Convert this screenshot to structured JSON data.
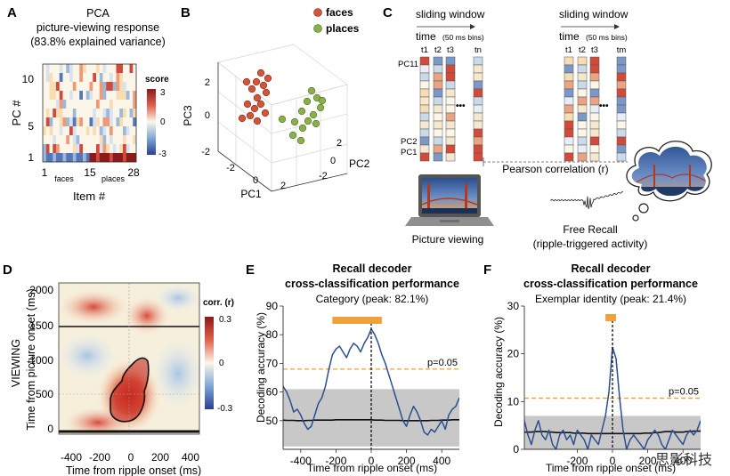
{
  "panels": {
    "A": {
      "letter": "A",
      "title_lines": [
        "PCA",
        "picture-viewing response",
        "(83.8% explained variance)"
      ],
      "ylabel": "PC #",
      "xlabel": "Item #",
      "yticks": [
        "10",
        "5",
        "1"
      ],
      "xticks": [
        "1",
        "15",
        "28"
      ],
      "xgroups": [
        "faces",
        "places"
      ],
      "colorbar_label": "score",
      "colorbar_ticks": [
        "3",
        "0",
        "-3"
      ]
    },
    "B": {
      "letter": "B",
      "legend": [
        {
          "label": "faces",
          "color": "#d35436"
        },
        {
          "label": "places",
          "color": "#8ab04a"
        }
      ],
      "axis_labels": {
        "pc1": "PC1",
        "pc2": "PC2",
        "pc3": "PC3"
      },
      "pc3_ticks": [
        "2",
        "0",
        "-2"
      ],
      "pc1_ticks": [
        "-2",
        "0",
        "2"
      ],
      "pc2_ticks": [
        "2",
        "0",
        "-2"
      ]
    },
    "C": {
      "letter": "C",
      "window_label": "sliding window",
      "time_label": "time",
      "bins_label": "(50 ms bins)",
      "left_cols": [
        "t1",
        "t2",
        "t3",
        "tn"
      ],
      "right_cols": [
        "t1",
        "t2",
        "t3",
        "tm"
      ],
      "row_labels": [
        "PC11",
        "PC2",
        "PC1"
      ],
      "ellipsis": "•••",
      "correlation_label": "Pearson correlation (r)",
      "picture_label": "Picture viewing",
      "recall_label_lines": [
        "Free Recall",
        "(ripple-triggered activity)"
      ]
    },
    "D": {
      "letter": "D",
      "side_label": "VIEWING",
      "ylabel": "Time from picture onset (ms)",
      "xlabel": "Time from ripple onset (ms)",
      "yticks": [
        "2000",
        "1500",
        "1000",
        "500",
        "0"
      ],
      "xticks": [
        "-400",
        "-200",
        "0",
        "200",
        "400"
      ],
      "colorbar_label": "corr. (r)",
      "colorbar_ticks": [
        "0.3",
        "0",
        "-0.3"
      ]
    },
    "E": {
      "letter": "E",
      "title_lines": [
        "Recall decoder",
        "cross-classification performance"
      ],
      "subtitle": "Category (peak: 82.1%)",
      "ylabel": "Decoding accuracy (%)",
      "xlabel": "Time from ripple onset (ms)",
      "yticks": [
        "90",
        "80",
        "70",
        "60",
        "50"
      ],
      "xticks": [
        "-400",
        "-200",
        "0",
        "200",
        "400"
      ],
      "threshold_label": "p=0.05"
    },
    "F": {
      "letter": "F",
      "title_lines": [
        "Recall decoder",
        "cross-classification performance"
      ],
      "subtitle": "Exemplar identity (peak: 21.4%)",
      "ylabel": "Decoding accuracy (%)",
      "xlabel": "Time from ripple onset (ms)",
      "yticks": [
        "30",
        "20",
        "10",
        "0"
      ],
      "xticks": [
        "-200",
        "0",
        "200",
        "400"
      ],
      "threshold_label": "p=0.05"
    }
  },
  "watermark": "思影科技",
  "colors": {
    "faces": "#d35436",
    "places": "#8ab04a",
    "decoder": "#2b4f91",
    "significance": "#f1a13a",
    "shuffle": "#c8c8c8"
  },
  "chart_data": [
    {
      "panel": "E",
      "type": "line",
      "xlim": [
        -500,
        500
      ],
      "ylim": [
        40,
        90
      ],
      "x": [
        -500,
        -480,
        -460,
        -440,
        -420,
        -400,
        -380,
        -360,
        -340,
        -320,
        -300,
        -280,
        -260,
        -240,
        -220,
        -200,
        -180,
        -160,
        -140,
        -120,
        -100,
        -80,
        -60,
        -40,
        -20,
        0,
        20,
        40,
        60,
        80,
        100,
        120,
        140,
        160,
        180,
        200,
        220,
        240,
        260,
        280,
        300,
        320,
        340,
        360,
        380,
        400,
        420,
        440,
        460,
        480,
        500
      ],
      "series": [
        {
          "values": [
            62,
            60,
            57,
            53,
            54,
            52,
            49,
            47,
            48,
            52,
            56,
            58,
            62,
            68,
            73,
            75,
            76,
            74,
            72,
            75,
            77,
            76,
            74,
            77,
            79,
            82,
            80,
            77,
            73,
            70,
            66,
            62,
            58,
            54,
            50,
            48,
            52,
            55,
            53,
            50,
            46,
            45,
            47,
            46,
            48,
            50,
            47,
            52,
            54,
            55,
            58
          ]
        },
        {
          "values": [
            50.2,
            50.1,
            50.1,
            50.1,
            50.0,
            50.0,
            50.0,
            50.1,
            50.1,
            50.2,
            50.2,
            50.2,
            50.2,
            50.2,
            50.2,
            50.3,
            50.3,
            50.3,
            50.3,
            50.3,
            50.3,
            50.3,
            50.3,
            50.3,
            50.3,
            50.3,
            50.2,
            50.2,
            50.2,
            50.1,
            50.1,
            50.1,
            50.1,
            50.1,
            50.0,
            50.0,
            50.0,
            50.0,
            50.0,
            50.0,
            50.0,
            50.0,
            50.1,
            50.1,
            50.1,
            50.2,
            50.2,
            50.2,
            50.3,
            50.3,
            50.3
          ]
        }
      ],
      "shuffle_band": [
        41,
        61
      ],
      "threshold": 68,
      "significant_interval": [
        -220,
        60
      ],
      "ripple_onset": 0
    },
    {
      "panel": "F",
      "type": "line",
      "xlim": [
        -500,
        500
      ],
      "ylim": [
        0,
        30
      ],
      "x": [
        -500,
        -480,
        -460,
        -440,
        -420,
        -400,
        -380,
        -360,
        -340,
        -320,
        -300,
        -280,
        -260,
        -240,
        -220,
        -200,
        -180,
        -160,
        -140,
        -120,
        -100,
        -80,
        -60,
        -40,
        -20,
        0,
        20,
        40,
        60,
        80,
        100,
        120,
        140,
        160,
        180,
        200,
        220,
        240,
        260,
        280,
        300,
        320,
        340,
        360,
        380,
        400,
        420,
        440,
        460,
        480,
        500
      ],
      "series": [
        {
          "values": [
            6,
            3,
            1,
            4,
            6,
            3,
            2,
            4,
            1,
            0,
            3,
            4,
            2,
            3,
            1,
            4,
            3,
            2,
            0,
            3,
            2,
            1,
            4,
            7,
            12,
            21.4,
            19,
            11,
            4,
            0,
            2,
            3,
            2,
            1,
            0,
            2,
            3,
            4,
            3,
            1,
            0,
            2,
            4,
            3,
            2,
            1,
            3,
            4,
            3,
            4,
            6
          ]
        },
        {
          "values": [
            3.6,
            3.6,
            3.6,
            3.7,
            3.7,
            3.7,
            3.7,
            3.6,
            3.6,
            3.5,
            3.5,
            3.5,
            3.5,
            3.5,
            3.4,
            3.4,
            3.4,
            3.4,
            3.3,
            3.3,
            3.3,
            3.3,
            3.3,
            3.3,
            3.3,
            3.3,
            3.3,
            3.3,
            3.3,
            3.3,
            3.3,
            3.3,
            3.3,
            3.3,
            3.4,
            3.4,
            3.4,
            3.5,
            3.5,
            3.6,
            3.7,
            3.7,
            3.7,
            3.6,
            3.6,
            3.6,
            3.7,
            3.7,
            3.8,
            3.8,
            3.8
          ]
        }
      ],
      "shuffle_band": [
        0,
        7
      ],
      "threshold": 10.7,
      "significant_interval": [
        -40,
        20
      ],
      "ripple_onset": 0
    }
  ]
}
